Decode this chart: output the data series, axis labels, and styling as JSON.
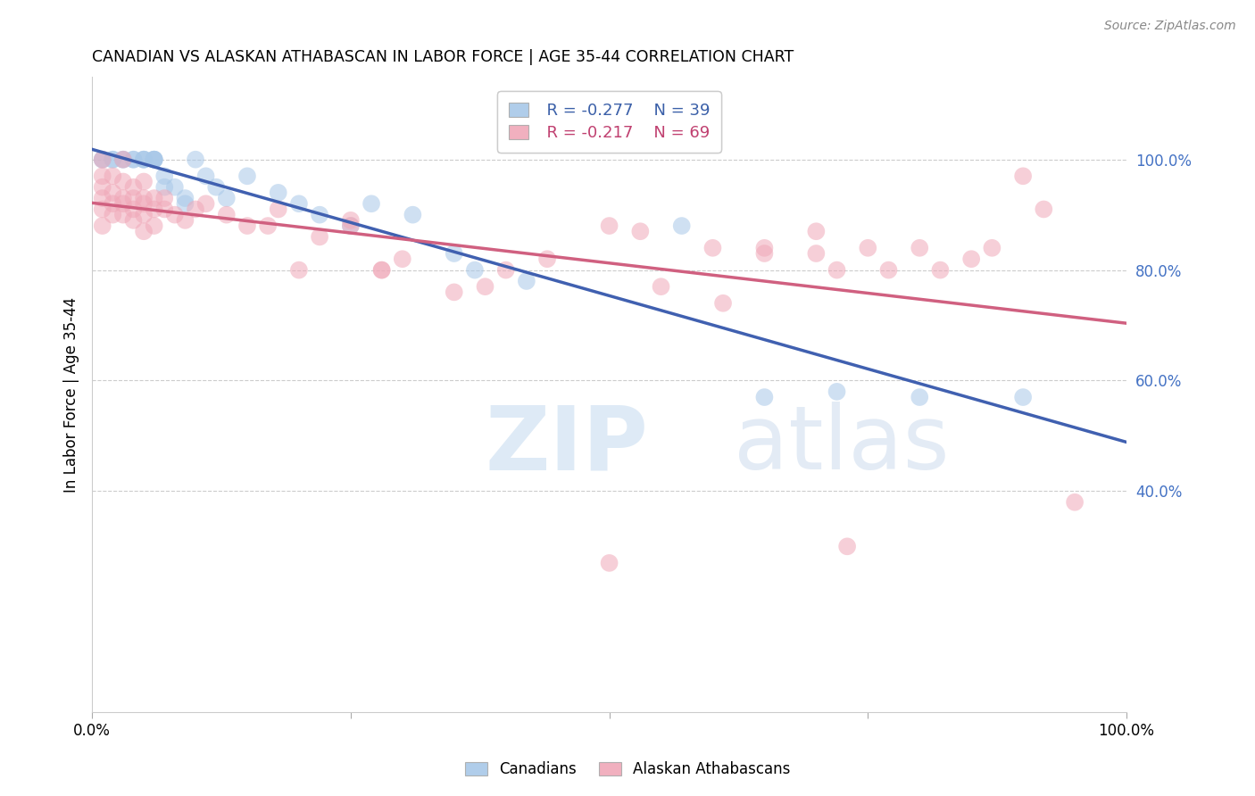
{
  "title": "CANADIAN VS ALASKAN ATHABASCAN IN LABOR FORCE | AGE 35-44 CORRELATION CHART",
  "source": "Source: ZipAtlas.com",
  "ylabel": "In Labor Force | Age 35-44",
  "legend_blue_r": "R = -0.277",
  "legend_blue_n": "N = 39",
  "legend_pink_r": "R = -0.217",
  "legend_pink_n": "N = 69",
  "legend_blue_label": "Canadians",
  "legend_pink_label": "Alaskan Athabascans",
  "blue_color": "#a8c8e8",
  "pink_color": "#f0a8b8",
  "blue_line_color": "#4060b0",
  "pink_line_color": "#d06080",
  "blue_scatter": [
    [
      1,
      100
    ],
    [
      1,
      100
    ],
    [
      2,
      100
    ],
    [
      2,
      100
    ],
    [
      3,
      100
    ],
    [
      3,
      100
    ],
    [
      4,
      100
    ],
    [
      4,
      100
    ],
    [
      5,
      100
    ],
    [
      5,
      100
    ],
    [
      5,
      100
    ],
    [
      6,
      100
    ],
    [
      6,
      100
    ],
    [
      6,
      100
    ],
    [
      6,
      100
    ],
    [
      7,
      97
    ],
    [
      7,
      95
    ],
    [
      8,
      95
    ],
    [
      9,
      93
    ],
    [
      9,
      92
    ],
    [
      10,
      100
    ],
    [
      11,
      97
    ],
    [
      12,
      95
    ],
    [
      13,
      93
    ],
    [
      15,
      97
    ],
    [
      18,
      94
    ],
    [
      20,
      92
    ],
    [
      22,
      90
    ],
    [
      25,
      88
    ],
    [
      27,
      92
    ],
    [
      31,
      90
    ],
    [
      35,
      83
    ],
    [
      37,
      80
    ],
    [
      42,
      78
    ],
    [
      57,
      88
    ],
    [
      65,
      57
    ],
    [
      72,
      58
    ],
    [
      80,
      57
    ],
    [
      90,
      57
    ]
  ],
  "pink_scatter": [
    [
      1,
      100
    ],
    [
      1,
      97
    ],
    [
      1,
      95
    ],
    [
      1,
      93
    ],
    [
      1,
      91
    ],
    [
      1,
      88
    ],
    [
      2,
      97
    ],
    [
      2,
      94
    ],
    [
      2,
      92
    ],
    [
      2,
      90
    ],
    [
      3,
      100
    ],
    [
      3,
      96
    ],
    [
      3,
      93
    ],
    [
      3,
      92
    ],
    [
      3,
      90
    ],
    [
      4,
      95
    ],
    [
      4,
      93
    ],
    [
      4,
      91
    ],
    [
      4,
      89
    ],
    [
      5,
      96
    ],
    [
      5,
      93
    ],
    [
      5,
      92
    ],
    [
      5,
      90
    ],
    [
      5,
      87
    ],
    [
      6,
      93
    ],
    [
      6,
      91
    ],
    [
      6,
      88
    ],
    [
      7,
      93
    ],
    [
      7,
      91
    ],
    [
      8,
      90
    ],
    [
      9,
      89
    ],
    [
      10,
      91
    ],
    [
      11,
      92
    ],
    [
      13,
      90
    ],
    [
      15,
      88
    ],
    [
      17,
      88
    ],
    [
      18,
      91
    ],
    [
      20,
      80
    ],
    [
      22,
      86
    ],
    [
      25,
      89
    ],
    [
      25,
      88
    ],
    [
      28,
      80
    ],
    [
      28,
      80
    ],
    [
      30,
      82
    ],
    [
      35,
      76
    ],
    [
      38,
      77
    ],
    [
      40,
      80
    ],
    [
      44,
      82
    ],
    [
      50,
      88
    ],
    [
      53,
      87
    ],
    [
      55,
      77
    ],
    [
      60,
      84
    ],
    [
      61,
      74
    ],
    [
      65,
      84
    ],
    [
      65,
      83
    ],
    [
      70,
      87
    ],
    [
      70,
      83
    ],
    [
      72,
      80
    ],
    [
      75,
      84
    ],
    [
      77,
      80
    ],
    [
      80,
      84
    ],
    [
      82,
      80
    ],
    [
      85,
      82
    ],
    [
      87,
      84
    ],
    [
      90,
      97
    ],
    [
      92,
      91
    ],
    [
      95,
      38
    ],
    [
      50,
      27
    ],
    [
      73,
      30
    ]
  ],
  "xlim": [
    0,
    100
  ],
  "ylim": [
    0,
    115
  ],
  "yticks": [
    40,
    60,
    80,
    100
  ],
  "ytick_labels": [
    "40.0%",
    "60.0%",
    "80.0%",
    "100.0%"
  ],
  "background_color": "#ffffff",
  "grid_color": "#cccccc"
}
